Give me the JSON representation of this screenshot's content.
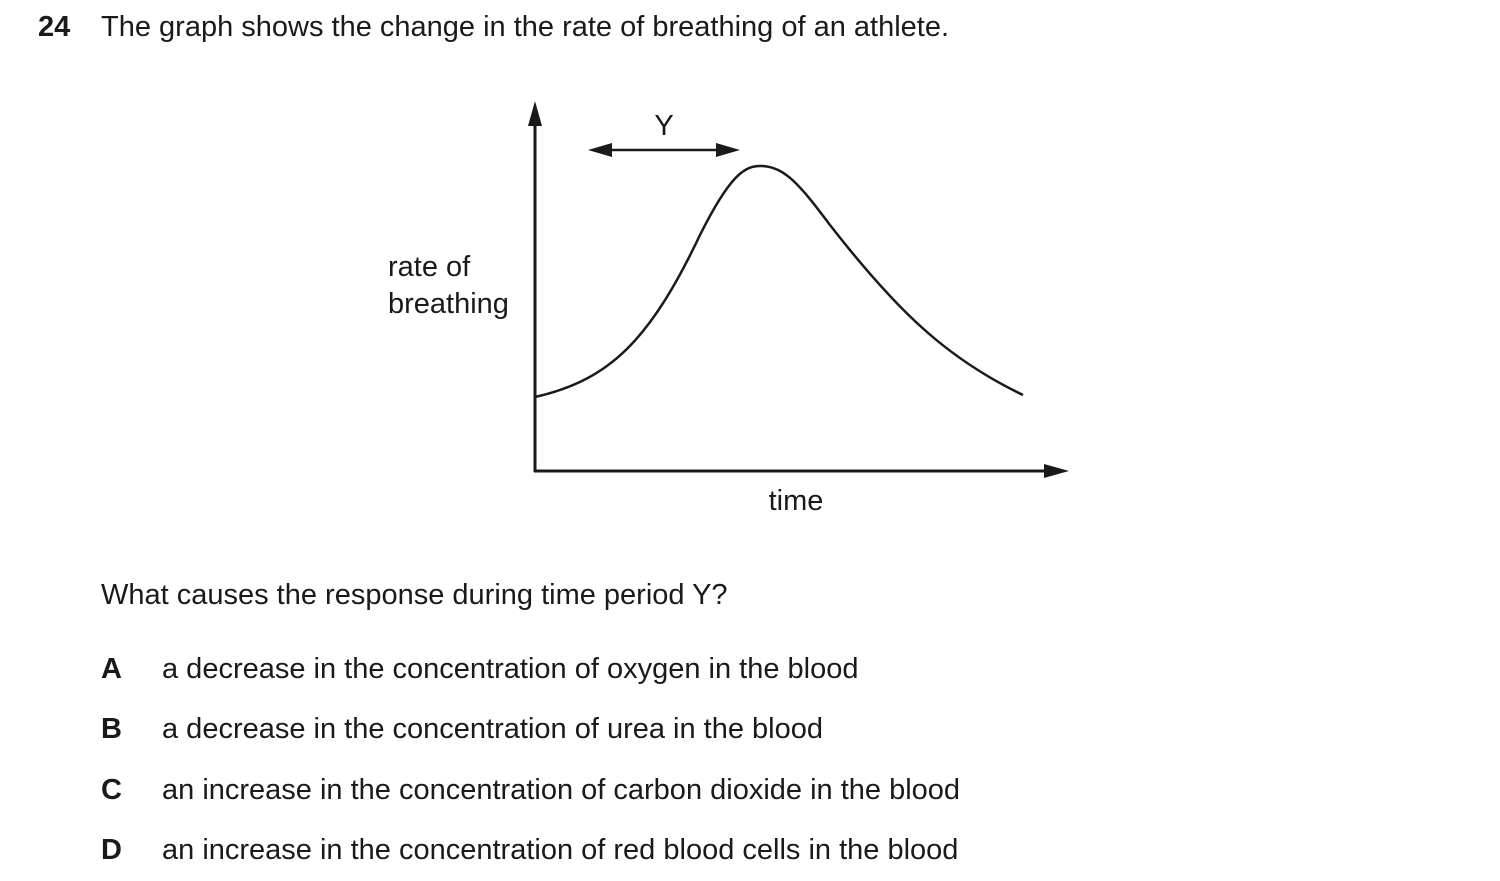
{
  "question": {
    "number": "24",
    "stem": "The graph shows the change in the rate of breathing of an athlete.",
    "prompt": "What causes the response during time period Y?"
  },
  "graph": {
    "y_axis_label_line1": "rate of",
    "y_axis_label_line2": "breathing",
    "x_axis_label": "time",
    "period_label": "Y"
  },
  "options": [
    {
      "letter": "A",
      "text": "a decrease in the concentration of oxygen in the blood"
    },
    {
      "letter": "B",
      "text": "a decrease in the concentration of urea in the blood"
    },
    {
      "letter": "C",
      "text": "an increase in the concentration of carbon dioxide in the blood"
    },
    {
      "letter": "D",
      "text": "an increase in the concentration of red blood cells in the blood"
    }
  ]
}
